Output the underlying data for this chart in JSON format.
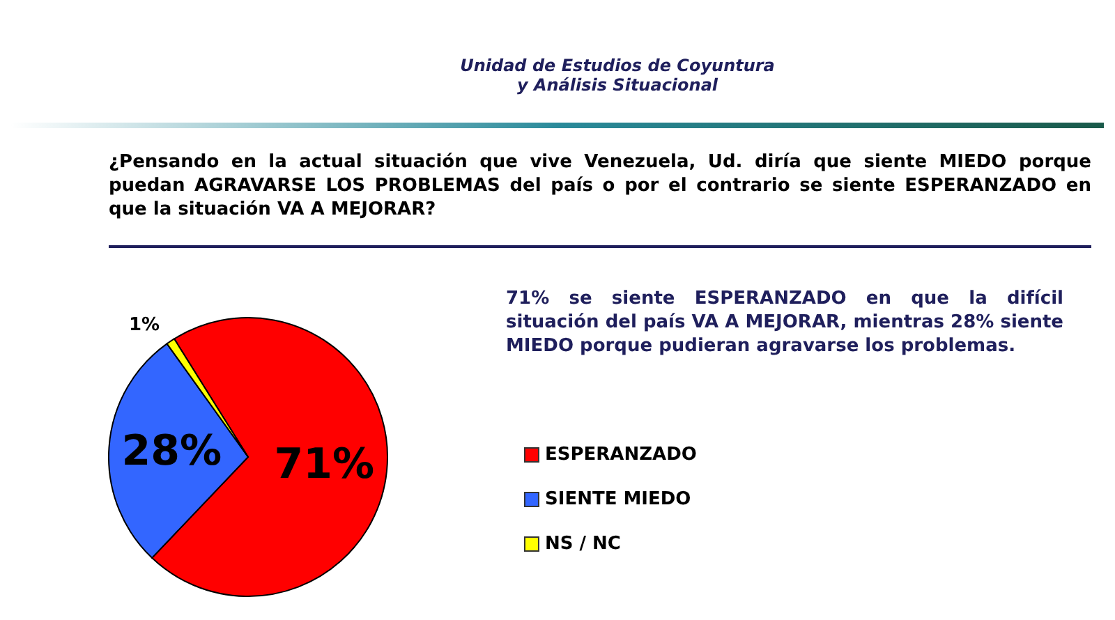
{
  "chart_data": {
    "type": "pie",
    "title": "¿Pensando en la actual situación que vive Venezuela, Ud. diría que siente MIEDO porque puedan AGRAVARSE LOS PROBLEMAS del país o por el contrario se siente ESPERANZADO en que la situación VA A MEJORAR?",
    "subtitle": "Unidad de Estudios de Coyuntura y Análisis Situacional",
    "categories": [
      "ESPERANZADO",
      "SIENTE MIEDO",
      "NS / NC"
    ],
    "values": [
      71,
      28,
      1
    ],
    "colors": [
      "#ff0000",
      "#3366ff",
      "#ffff00"
    ],
    "value_labels": [
      "71%",
      "28%",
      "1%"
    ],
    "legend": "right",
    "annotations": [
      "71% se siente ESPERANZADO en que la difícil situación del país VA A MEJORAR, mientras 28% siente MIEDO porque pudieran agravarse los problemas."
    ]
  }
}
